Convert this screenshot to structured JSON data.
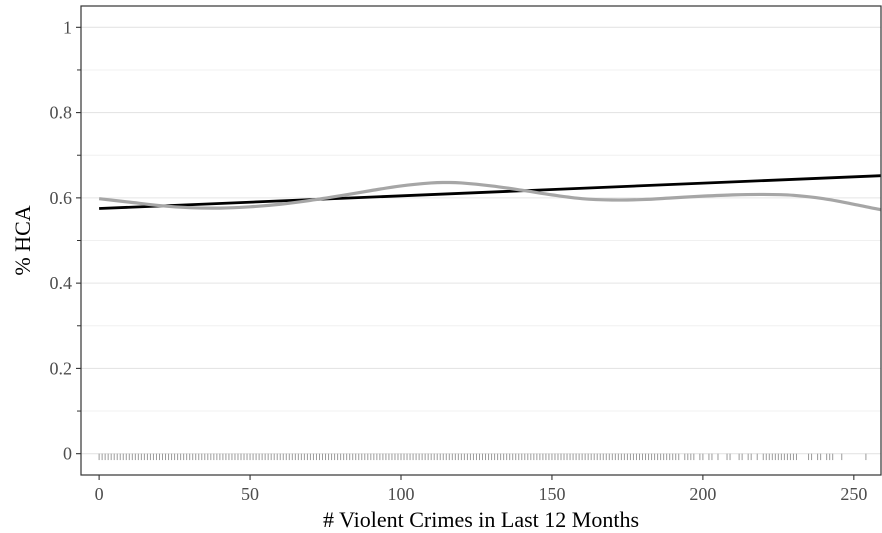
{
  "chart_data": {
    "type": "line",
    "title": "",
    "xlabel": "# Violent Crimes in Last 12 Months",
    "ylabel": "% HCA",
    "xlim": [
      -6,
      259
    ],
    "ylim": [
      -0.05,
      1.05
    ],
    "x_ticks": [
      0,
      50,
      100,
      150,
      200,
      250
    ],
    "x_tick_labels": [
      "0",
      "50",
      "100",
      "150",
      "200",
      "250"
    ],
    "y_ticks": [
      0,
      0.2,
      0.4,
      0.6,
      0.8,
      1
    ],
    "y_tick_labels": [
      "0",
      "0.2",
      "0.4",
      "0.6",
      "0.8",
      "1"
    ],
    "y_minor_ticks": [
      0.1,
      0.3,
      0.5,
      0.7,
      0.9
    ],
    "grid": true,
    "legend": "none",
    "series": [
      {
        "style": "linear-fit",
        "color": "#000000",
        "x": [
          0,
          259
        ],
        "y": [
          0.575,
          0.652
        ]
      },
      {
        "style": "smooth",
        "color": "#a6a6a6",
        "x": [
          0,
          10,
          20,
          30,
          40,
          50,
          60,
          70,
          80,
          90,
          100,
          110,
          115,
          120,
          130,
          140,
          150,
          160,
          170,
          180,
          190,
          200,
          210,
          220,
          230,
          240,
          250,
          259
        ],
        "y": [
          0.598,
          0.59,
          0.582,
          0.577,
          0.576,
          0.579,
          0.585,
          0.594,
          0.605,
          0.617,
          0.628,
          0.635,
          0.636,
          0.635,
          0.628,
          0.618,
          0.607,
          0.598,
          0.595,
          0.596,
          0.6,
          0.604,
          0.607,
          0.608,
          0.606,
          0.598,
          0.585,
          0.572
        ]
      }
    ],
    "rug": {
      "color": "#9a9a9a",
      "y_from": -0.015,
      "y_to": 0.0,
      "dense_range": [
        0,
        190
      ],
      "x": [
        191,
        192,
        194,
        195,
        196,
        197,
        199,
        200,
        202,
        203,
        205,
        208,
        209,
        212,
        213,
        215,
        216,
        218,
        220,
        221,
        222,
        223,
        224,
        225,
        226,
        227,
        228,
        229,
        230,
        231,
        235,
        236,
        238,
        239,
        241,
        242,
        243,
        246,
        254
      ]
    }
  }
}
